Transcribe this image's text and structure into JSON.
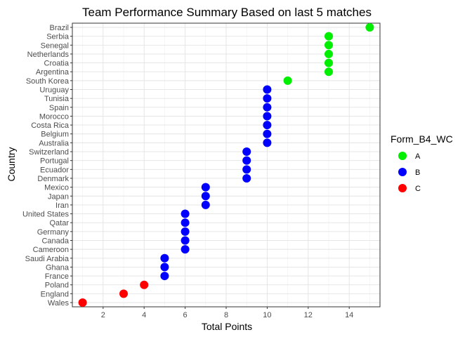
{
  "chart_data": {
    "type": "scatter",
    "title": "Team Performance Summary Based on last 5 matches",
    "xlabel": "Total Points",
    "ylabel": "Country",
    "xlim": [
      0.5,
      15.5
    ],
    "xticks": [
      2,
      4,
      6,
      8,
      10,
      12,
      14
    ],
    "grid": true,
    "legend": {
      "title": "Form_B4_WC",
      "placement": "right",
      "entries": [
        {
          "label": "A",
          "color": "#00ee00"
        },
        {
          "label": "B",
          "color": "#0000ff"
        },
        {
          "label": "C",
          "color": "#ff0000"
        }
      ]
    },
    "points": [
      {
        "country": "Brazil",
        "points": 15,
        "form": "A"
      },
      {
        "country": "Serbia",
        "points": 13,
        "form": "A"
      },
      {
        "country": "Senegal",
        "points": 13,
        "form": "A"
      },
      {
        "country": "Netherlands",
        "points": 13,
        "form": "A"
      },
      {
        "country": "Croatia",
        "points": 13,
        "form": "A"
      },
      {
        "country": "Argentina",
        "points": 13,
        "form": "A"
      },
      {
        "country": "South Korea",
        "points": 11,
        "form": "A"
      },
      {
        "country": "Uruguay",
        "points": 10,
        "form": "B"
      },
      {
        "country": "Tunisia",
        "points": 10,
        "form": "B"
      },
      {
        "country": "Spain",
        "points": 10,
        "form": "B"
      },
      {
        "country": "Morocco",
        "points": 10,
        "form": "B"
      },
      {
        "country": "Costa Rica",
        "points": 10,
        "form": "B"
      },
      {
        "country": "Belgium",
        "points": 10,
        "form": "B"
      },
      {
        "country": "Australia",
        "points": 10,
        "form": "B"
      },
      {
        "country": "Switzerland",
        "points": 9,
        "form": "B"
      },
      {
        "country": "Portugal",
        "points": 9,
        "form": "B"
      },
      {
        "country": "Ecuador",
        "points": 9,
        "form": "B"
      },
      {
        "country": "Denmark",
        "points": 9,
        "form": "B"
      },
      {
        "country": "Mexico",
        "points": 7,
        "form": "B"
      },
      {
        "country": "Japan",
        "points": 7,
        "form": "B"
      },
      {
        "country": "Iran",
        "points": 7,
        "form": "B"
      },
      {
        "country": "United States",
        "points": 6,
        "form": "B"
      },
      {
        "country": "Qatar",
        "points": 6,
        "form": "B"
      },
      {
        "country": "Germany",
        "points": 6,
        "form": "B"
      },
      {
        "country": "Canada",
        "points": 6,
        "form": "B"
      },
      {
        "country": "Cameroon",
        "points": 6,
        "form": "B"
      },
      {
        "country": "Saudi Arabia",
        "points": 5,
        "form": "B"
      },
      {
        "country": "Ghana",
        "points": 5,
        "form": "B"
      },
      {
        "country": "France",
        "points": 5,
        "form": "B"
      },
      {
        "country": "Poland",
        "points": 4,
        "form": "C"
      },
      {
        "country": "England",
        "points": 3,
        "form": "C"
      },
      {
        "country": "Wales",
        "points": 1,
        "form": "C"
      }
    ]
  }
}
